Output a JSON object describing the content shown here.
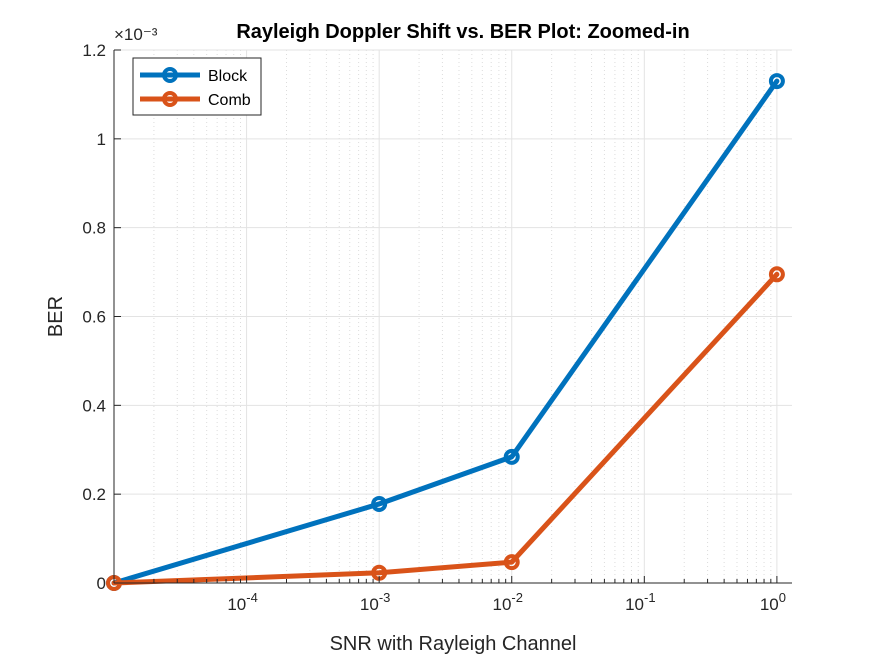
{
  "chart_data": {
    "type": "line",
    "title": "Rayleigh Doppler Shift vs. BER Plot: Zoomed-in",
    "xlabel": "SNR with Rayleigh Channel",
    "ylabel": "BER",
    "xscale": "log",
    "xlim": [
      1e-05,
      1.3
    ],
    "ylim": [
      0,
      0.0012
    ],
    "y_exponent_label": "×10⁻³",
    "x_ticks": [
      {
        "value": 0.0001,
        "base": "10",
        "exp": "-4"
      },
      {
        "value": 0.001,
        "base": "10",
        "exp": "-3"
      },
      {
        "value": 0.01,
        "base": "10",
        "exp": "-2"
      },
      {
        "value": 0.1,
        "base": "10",
        "exp": "-1"
      },
      {
        "value": 1,
        "base": "10",
        "exp": "0"
      }
    ],
    "y_ticks": [
      {
        "value": 0,
        "label": "0"
      },
      {
        "value": 0.0002,
        "label": "0.2"
      },
      {
        "value": 0.0004,
        "label": "0.4"
      },
      {
        "value": 0.0006,
        "label": "0.6"
      },
      {
        "value": 0.0008,
        "label": "0.8"
      },
      {
        "value": 0.001,
        "label": "1"
      },
      {
        "value": 0.0012,
        "label": "1.2"
      }
    ],
    "grid": true,
    "legend_position": "top-left",
    "series": [
      {
        "name": "Block",
        "color": "#0072BD",
        "x": [
          1e-05,
          0.001,
          0.01,
          1
        ],
        "y": [
          0,
          0.000178,
          0.000284,
          0.00113
        ]
      },
      {
        "name": "Comb",
        "color": "#D95319",
        "x": [
          1e-05,
          0.001,
          0.01,
          1
        ],
        "y": [
          0,
          2.3e-05,
          4.7e-05,
          0.000695
        ]
      }
    ]
  }
}
